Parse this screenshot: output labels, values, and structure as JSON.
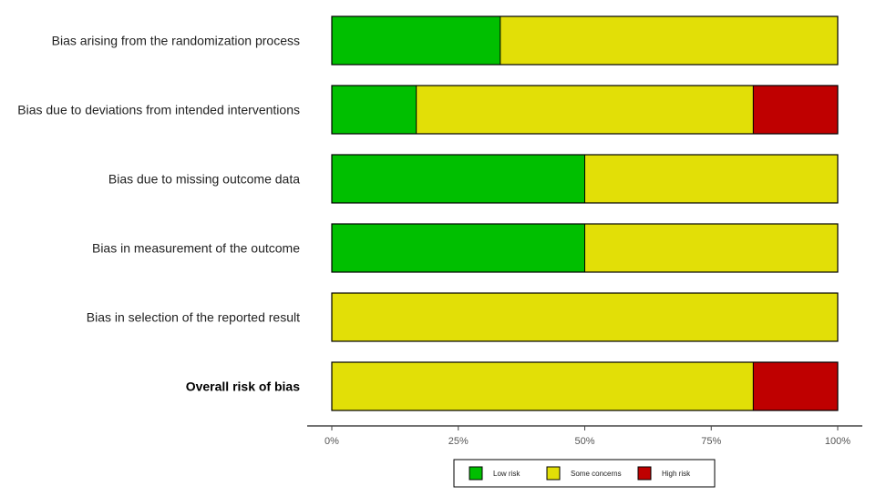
{
  "chart_data": {
    "type": "bar",
    "orientation": "horizontal",
    "stacked": true,
    "categories": [
      "Bias arising from the randomization process",
      "Bias due to deviations from intended interventions",
      "Bias due to missing outcome data",
      "Bias in measurement of the outcome",
      "Bias in selection of the reported result",
      "Overall risk of bias"
    ],
    "bold_categories": [
      "Overall risk of bias"
    ],
    "series": [
      {
        "name": "Low risk",
        "color": "#00BF00",
        "values": [
          33.3,
          16.7,
          50,
          50,
          0,
          0
        ]
      },
      {
        "name": "Some concerns",
        "color": "#E2DF07",
        "values": [
          66.7,
          66.6,
          50,
          50,
          100,
          83.3
        ]
      },
      {
        "name": "High risk",
        "color": "#BF0000",
        "values": [
          0,
          16.7,
          0,
          0,
          0,
          16.7
        ]
      }
    ],
    "xlim": [
      0,
      100
    ],
    "xticks": [
      0,
      25,
      50,
      75,
      100
    ],
    "xtick_labels": [
      "0%",
      "25%",
      "50%",
      "75%",
      "100%"
    ],
    "title": "",
    "xlabel": "",
    "ylabel": "",
    "grid": false,
    "legend_position": "bottom"
  }
}
